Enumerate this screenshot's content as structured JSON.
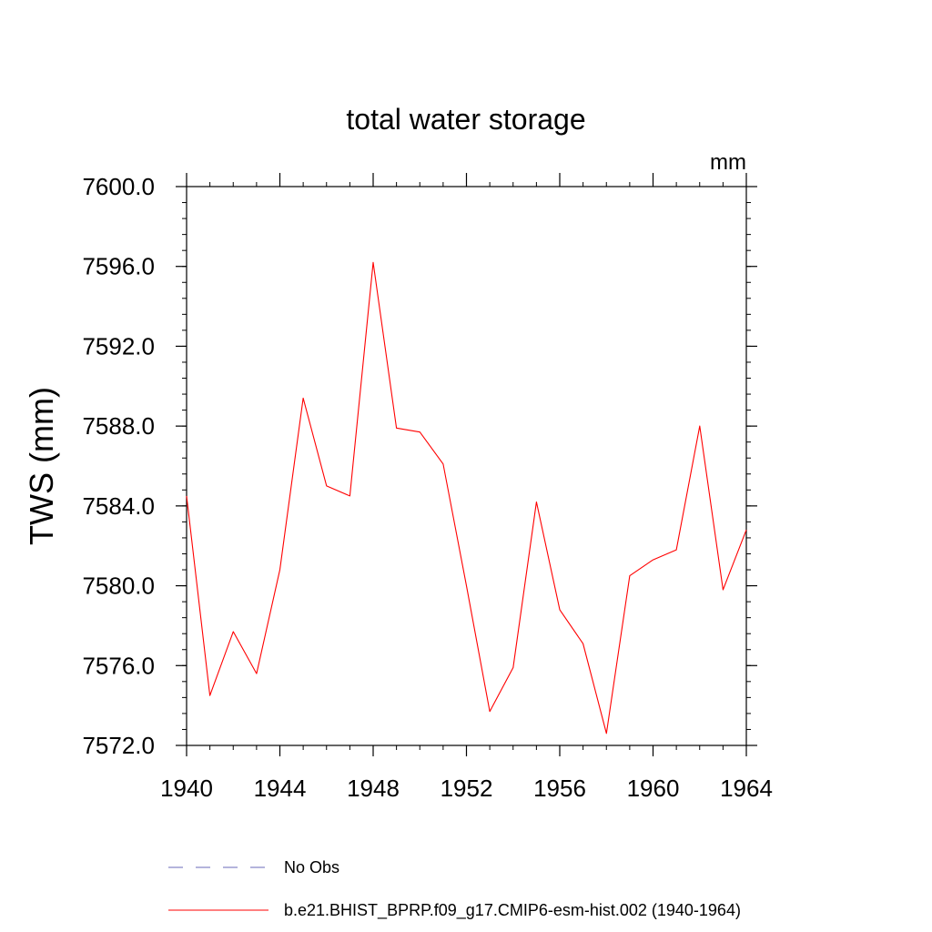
{
  "chart_data": {
    "type": "line",
    "title": "total water storage",
    "units_label": "mm",
    "xlabel": "",
    "ylabel": "TWS  (mm)",
    "xlim": [
      1940,
      1964
    ],
    "ylim": [
      7572,
      7600
    ],
    "xticks": [
      {
        "value": 1940,
        "label": "1940"
      },
      {
        "value": 1944,
        "label": "1944"
      },
      {
        "value": 1948,
        "label": "1948"
      },
      {
        "value": 1952,
        "label": "1952"
      },
      {
        "value": 1956,
        "label": "1956"
      },
      {
        "value": 1960,
        "label": "1960"
      },
      {
        "value": 1964,
        "label": "1964"
      }
    ],
    "yticks": [
      {
        "value": 7572,
        "label": "7572.0"
      },
      {
        "value": 7576,
        "label": "7576.0"
      },
      {
        "value": 7580,
        "label": "7580.0"
      },
      {
        "value": 7584,
        "label": "7584.0"
      },
      {
        "value": 7588,
        "label": "7588.0"
      },
      {
        "value": 7592,
        "label": "7592.0"
      },
      {
        "value": 7596,
        "label": "7596.0"
      },
      {
        "value": 7600,
        "label": "7600.0"
      }
    ],
    "series": [
      {
        "name": "b.e21.BHIST_BPRP.f09_g17.CMIP6-esm-hist.002 (1940-1964)",
        "color": "#ff0000",
        "x": [
          1940,
          1941,
          1942,
          1943,
          1944,
          1945,
          1946,
          1947,
          1948,
          1949,
          1950,
          1951,
          1952,
          1953,
          1954,
          1955,
          1956,
          1957,
          1958,
          1959,
          1960,
          1961,
          1962,
          1963,
          1964
        ],
        "values": [
          7584.5,
          7574.5,
          7577.7,
          7575.6,
          7580.8,
          7589.4,
          7585.0,
          7584.5,
          7596.2,
          7587.9,
          7587.7,
          7586.1,
          7580.0,
          7573.7,
          7575.9,
          7584.2,
          7578.8,
          7577.1,
          7572.6,
          7580.5,
          7581.3,
          7581.8,
          7588.0,
          7579.8,
          7582.8
        ]
      }
    ],
    "legend": [
      {
        "label": "No Obs",
        "style": "dashed",
        "color": "#6a6ab8"
      },
      {
        "label": "b.e21.BHIST_BPRP.f09_g17.CMIP6-esm-hist.002 (1940-1964)",
        "style": "solid",
        "color": "#ff0000"
      }
    ]
  }
}
